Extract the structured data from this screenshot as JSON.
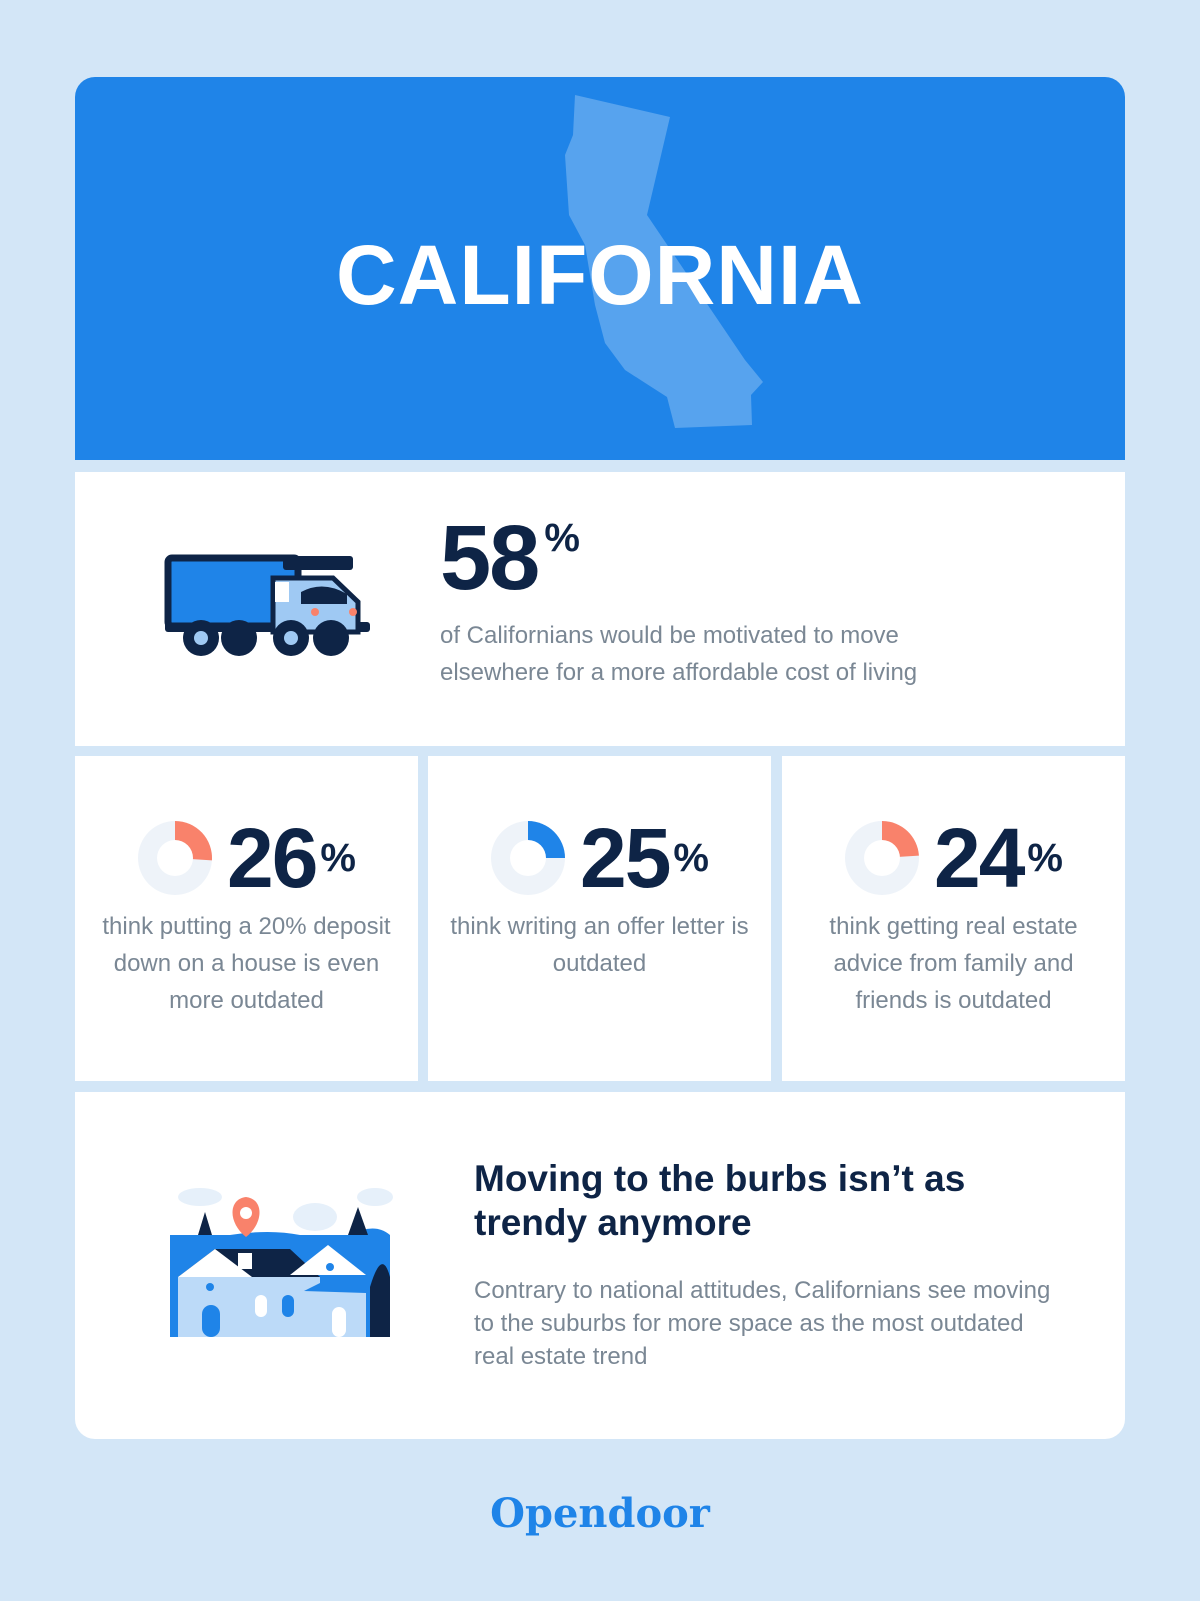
{
  "hero": {
    "title": "CALIFORNIA"
  },
  "main_stat": {
    "value": "58",
    "sign": "%",
    "description": "of Californians would be motivated to move elsewhere for a more affordable cost of living"
  },
  "small_stats": [
    {
      "value": "26",
      "sign": "%",
      "fraction": 0.26,
      "accent": "#f9826b",
      "description": "think putting a 20% deposit down on a house is even more outdated"
    },
    {
      "value": "25",
      "sign": "%",
      "fraction": 0.25,
      "accent": "#1f84e8",
      "description": "think writing an offer letter is outdated"
    },
    {
      "value": "24",
      "sign": "%",
      "fraction": 0.24,
      "accent": "#f9826b",
      "description": "think getting real estate advice from family and friends is outdated"
    }
  ],
  "burbs": {
    "title": "Moving to the burbs isn’t as trendy anymore",
    "description": "Contrary to national attitudes, Californians see moving to the suburbs for more space as the most outdated real estate trend"
  },
  "footer": {
    "logo": "Opendoor"
  },
  "colors": {
    "background": "#d3e6f7",
    "brand_blue": "#1f84e8",
    "navy": "#0e2446",
    "coral": "#f9826b",
    "muted_text": "#7a8794"
  }
}
